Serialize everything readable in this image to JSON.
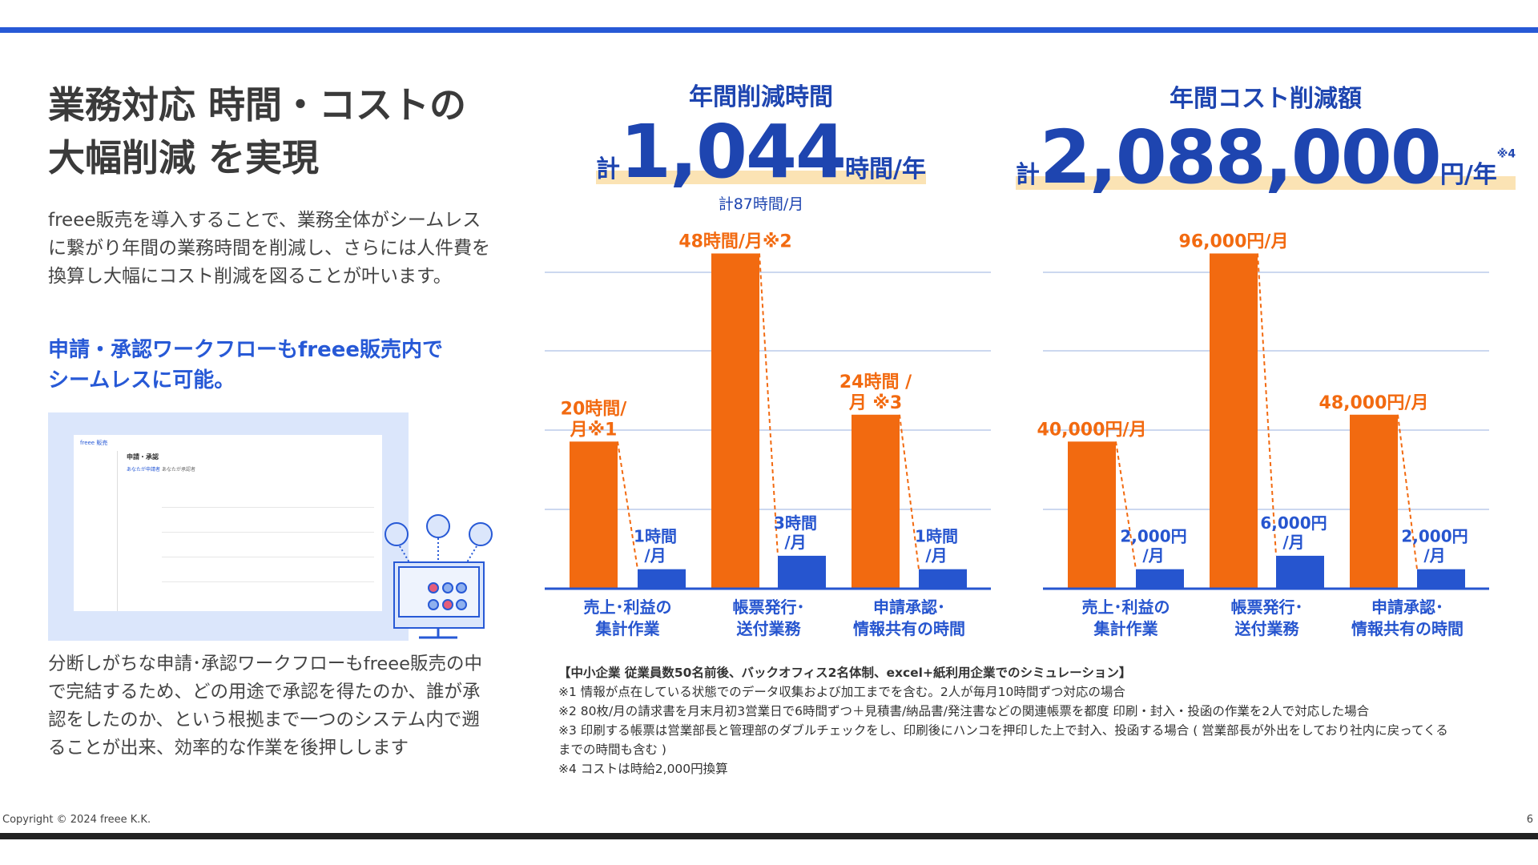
{
  "title_lines": [
    "業務対応 時間・コストの",
    "大幅削減 を実現"
  ],
  "intro": "freee販売を導入することで、業務全体がシームレスに繋がり年間の業務時間を削減し、さらには人件費を換算し大幅にコスト削減を図ることが叶います。",
  "subheading_lines": [
    "申請・承認ワークフローもfreee販売内で",
    "シームレスに可能。"
  ],
  "screenshot": {
    "app_title": "freee 販売",
    "page_title": "申請・承認",
    "tabs": [
      "あなたが申請者",
      "あなたが承認者"
    ]
  },
  "body": "分断しがちな申請･承認ワークフローもfreee販売の中で完結するため、どの用途で承認を得たのか、誰が承認をしたのか、という根拠まで一つのシステム内で遡ることが出来、効率的な作業を後押しします",
  "kpi_time": {
    "heading": "年間削減時間",
    "prefix": "計",
    "value": "1,044",
    "unit": "時間/年",
    "monthly": "計87時間/月"
  },
  "kpi_cost": {
    "heading": "年間コスト削減額",
    "prefix": "計",
    "value": "2,088,000",
    "unit": "円/年",
    "note": "※4"
  },
  "colors": {
    "before": "#f26a10",
    "after": "#2655cf",
    "accent": "#2759d6",
    "highlight": "#fbe3b4"
  },
  "chart_data": [
    {
      "type": "bar",
      "categories": [
        [
          "売上･利益の",
          "集計作業"
        ],
        [
          "帳票発行･",
          "送付業務"
        ],
        [
          "申請承認･",
          "情報共有の時間"
        ]
      ],
      "series": [
        {
          "values": [
            20,
            48,
            24
          ],
          "labels": [
            [
              "20時間/",
              "月※1"
            ],
            [
              "48時間/月※2"
            ],
            [
              "24時間 /",
              "月 ※3"
            ]
          ]
        },
        {
          "values": [
            1,
            3,
            1
          ],
          "labels": [
            [
              "1時間",
              "/月"
            ],
            [
              "3時間",
              "/月"
            ],
            [
              "1時間",
              "/月"
            ]
          ]
        }
      ],
      "unit": "時間/月"
    },
    {
      "type": "bar",
      "categories": [
        [
          "売上･利益の",
          "集計作業"
        ],
        [
          "帳票発行･",
          "送付業務"
        ],
        [
          "申請承認･",
          "情報共有の時間"
        ]
      ],
      "series": [
        {
          "values": [
            40000,
            96000,
            48000
          ],
          "labels": [
            [
              "40,000円/月"
            ],
            [
              "96,000円/月"
            ],
            [
              "48,000円/月"
            ]
          ]
        },
        {
          "values": [
            2000,
            6000,
            2000
          ],
          "labels": [
            [
              "2,000円",
              "/月"
            ],
            [
              "6,000円",
              "/月"
            ],
            [
              "2,000円",
              "/月"
            ]
          ]
        }
      ],
      "unit": "円/月"
    }
  ],
  "notes": [
    "【中小企業 従業員数50名前後、バックオフィス2名体制、excel+紙利用企業でのシミュレーション】",
    "※1 情報が点在している状態でのデータ収集および加工までを含む。2人が毎月10時間ずつ対応の場合",
    "※2 80枚/月の請求書を月末月初3営業日で6時間ずつ＋見積書/納品書/発注書などの関連帳票を都度 印刷・封入・投函の作業を2人で対応した場合",
    "※3 印刷する帳票は営業部長と管理部のダブルチェックをし、印刷後にハンコを押印した上で封入、投函する場合 ( 営業部長が外出をしており社内に戻ってくる",
    "までの時間も含む )",
    "※4 コストは時給2,000円換算"
  ],
  "footer": {
    "copyright": "Copyright © 2024 freee K.K.",
    "page": "6"
  }
}
